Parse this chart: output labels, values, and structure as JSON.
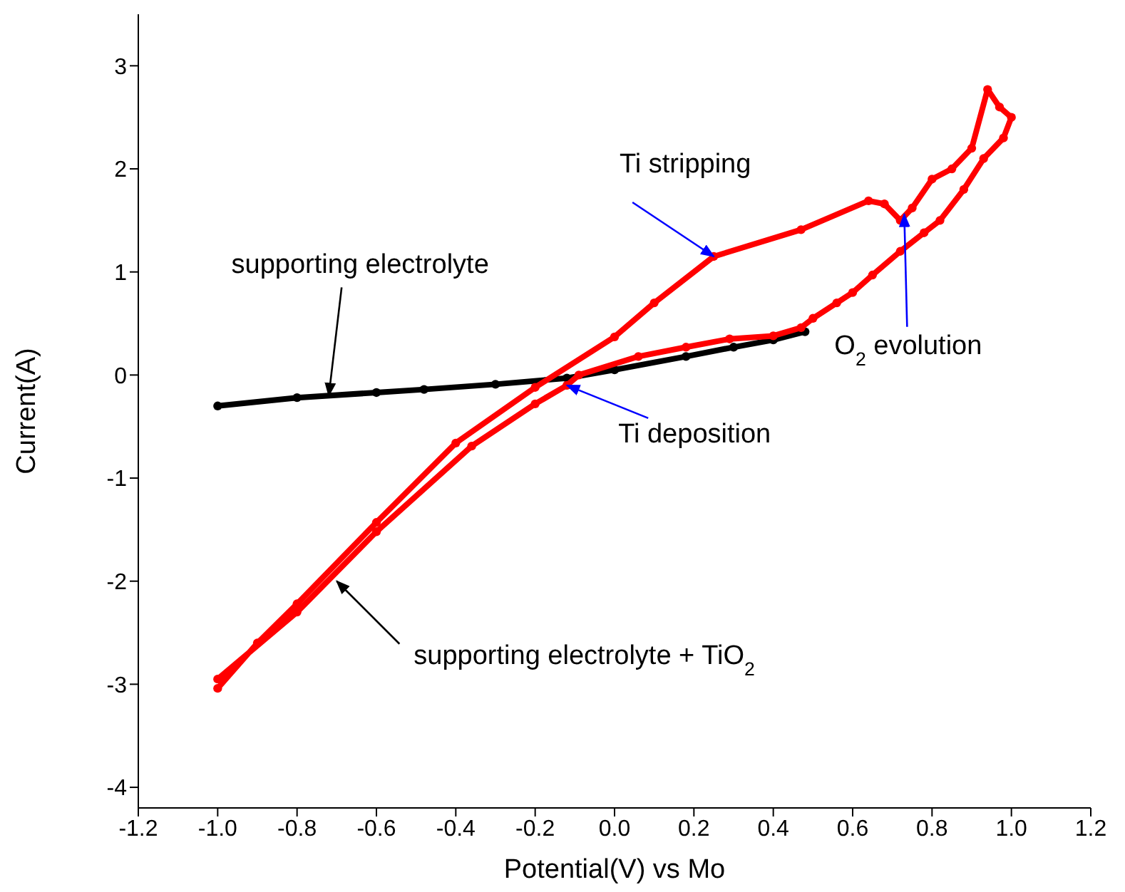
{
  "chart_data": {
    "type": "line",
    "xlabel": "Potential(V) vs Mo",
    "ylabel": "Current(A)",
    "xlim": [
      -1.2,
      1.2
    ],
    "ylim": [
      -4.2,
      3.5
    ],
    "xticks": [
      -1.2,
      {
        "value": -1,
        "label": "-1.0"
      },
      -0.8,
      -0.6,
      -0.4,
      -0.2,
      {
        "value": 0,
        "label": "0.0"
      },
      0.2,
      0.4,
      0.6,
      0.8,
      {
        "value": 1,
        "label": "1.0"
      },
      1.2
    ],
    "yticks": [
      -4,
      -3,
      -2,
      -1,
      0,
      1,
      2,
      3
    ],
    "marker": "circle",
    "line_style": "solid",
    "series": [
      {
        "color": "#000000",
        "x": [
          -1.0,
          -0.8,
          -0.6,
          -0.48,
          -0.3,
          -0.12,
          0.0,
          0.18,
          0.3,
          0.4,
          0.48
        ],
        "values": [
          -0.3,
          -0.22,
          -0.17,
          -0.14,
          -0.09,
          -0.03,
          0.05,
          0.18,
          0.27,
          0.34,
          0.42
        ]
      },
      {
        "color": "#ff0000",
        "x": [
          -1.0,
          -0.9,
          -0.8,
          -0.6,
          -0.4,
          -0.2,
          0.0,
          0.1,
          0.25,
          0.47,
          0.64,
          0.68,
          0.72,
          0.75,
          0.8,
          0.85,
          0.9,
          0.94,
          0.97,
          1.0,
          0.98,
          0.93,
          0.88,
          0.82,
          0.78,
          0.72,
          0.65,
          0.6,
          0.56,
          0.5,
          0.47,
          0.4,
          0.29,
          0.18,
          0.06,
          -0.09,
          -0.12,
          -0.2,
          -0.36,
          -0.6,
          -0.8,
          -1.0
        ],
        "values": [
          -3.04,
          -2.6,
          -2.22,
          -1.43,
          -0.66,
          -0.12,
          0.37,
          0.7,
          1.15,
          1.41,
          1.69,
          1.66,
          1.5,
          1.62,
          1.9,
          2.0,
          2.2,
          2.77,
          2.6,
          2.5,
          2.3,
          2.1,
          1.8,
          1.5,
          1.38,
          1.2,
          0.97,
          0.8,
          0.7,
          0.55,
          0.46,
          0.38,
          0.35,
          0.27,
          0.18,
          0.0,
          -0.1,
          -0.28,
          -0.69,
          -1.52,
          -2.3,
          -2.95
        ]
      }
    ],
    "annotations": [
      {
        "text": "supporting electrolyte",
        "x": -0.72,
        "y": -0.2
      },
      {
        "text": "supporting electrolyte + TiO$_{2}$",
        "x": -0.7,
        "y": -2.0
      },
      {
        "text": "Ti stripping",
        "x": 0.25,
        "y": 1.15
      },
      {
        "text": "Ti deposition",
        "x": -0.12,
        "y": -0.1
      },
      {
        "text": "O$_{2}$ evolution",
        "x": 0.73,
        "y": 1.56
      }
    ]
  }
}
